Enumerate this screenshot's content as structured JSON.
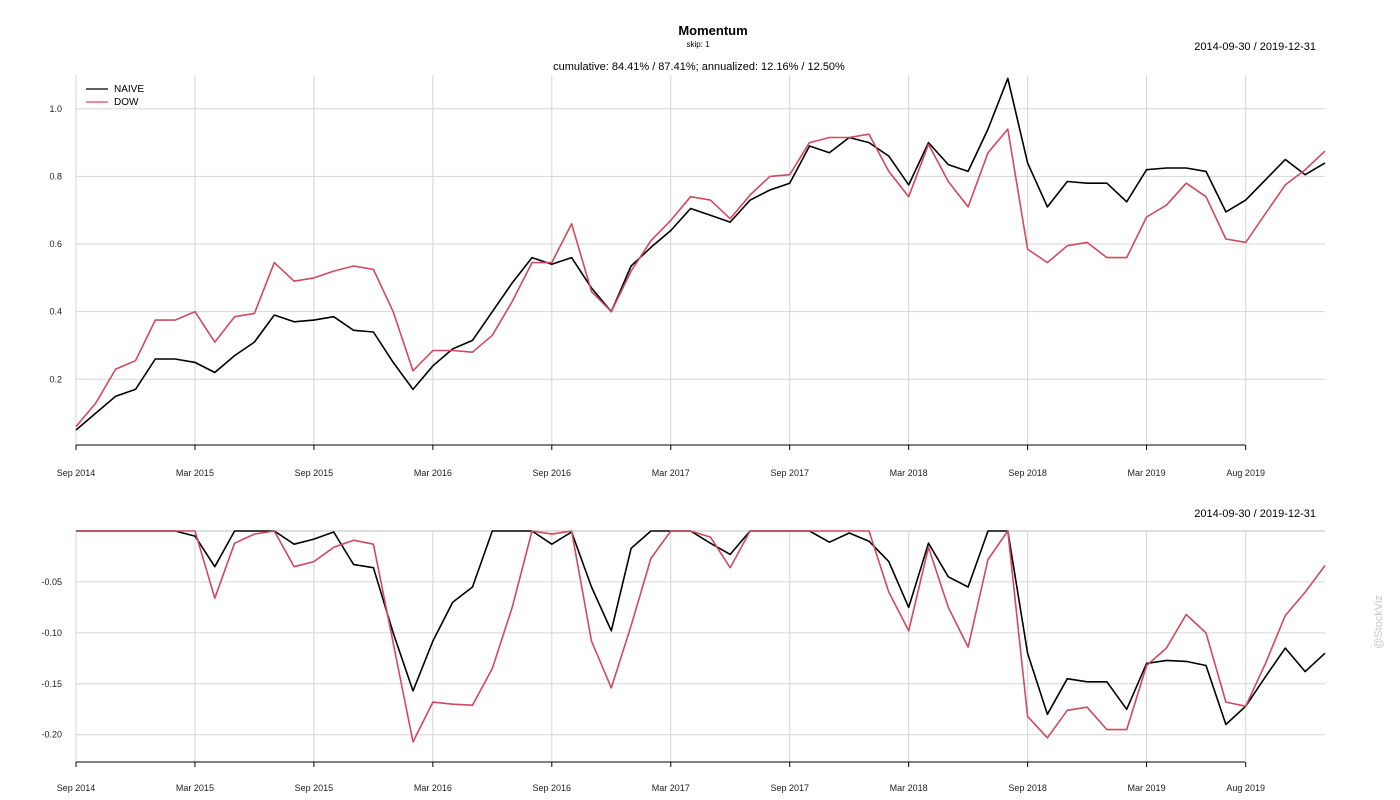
{
  "chart_data": [
    {
      "type": "line",
      "title": "Momentum",
      "subtitle": "skip: 1",
      "stats_label": "cumulative: 84.41% / 87.41%; annualized: 12.16% / 12.50%",
      "date_range_label": "2014-09-30 / 2019-12-31",
      "xlabel": "",
      "ylabel": "",
      "ylim": [
        0.05,
        1.1
      ],
      "yticks": [
        "0.2",
        "0.4",
        "0.6",
        "0.8",
        "1.0"
      ],
      "xticks": [
        "Sep 2014",
        "Mar 2015",
        "Sep 2015",
        "Mar 2016",
        "Sep 2016",
        "Mar 2017",
        "Sep 2017",
        "Mar 2018",
        "Sep 2018",
        "Mar 2019",
        "Aug 2019"
      ],
      "x_start": "2014-09",
      "x_end": "2019-12",
      "grid": true,
      "legend_position": "top-left",
      "series": [
        {
          "name": "NAIVE",
          "color": "#000000",
          "values": [
            0.05,
            0.1,
            0.15,
            0.17,
            0.26,
            0.26,
            0.25,
            0.22,
            0.27,
            0.31,
            0.39,
            0.37,
            0.375,
            0.385,
            0.345,
            0.34,
            0.25,
            0.17,
            0.24,
            0.29,
            0.315,
            0.4,
            0.485,
            0.56,
            0.54,
            0.56,
            0.47,
            0.4,
            0.535,
            0.59,
            0.64,
            0.705,
            0.685,
            0.665,
            0.73,
            0.76,
            0.78,
            0.89,
            0.87,
            0.915,
            0.9,
            0.86,
            0.775,
            0.9,
            0.835,
            0.815,
            0.94,
            1.09,
            0.84,
            0.71,
            0.785,
            0.78,
            0.78,
            0.725,
            0.82,
            0.825,
            0.825,
            0.815,
            0.695,
            0.73,
            0.79,
            0.85,
            0.805,
            0.84
          ]
        },
        {
          "name": "DOW",
          "color": "#d0495e",
          "values": [
            0.06,
            0.13,
            0.23,
            0.255,
            0.375,
            0.375,
            0.4,
            0.31,
            0.385,
            0.395,
            0.545,
            0.49,
            0.5,
            0.52,
            0.535,
            0.525,
            0.4,
            0.225,
            0.285,
            0.285,
            0.28,
            0.33,
            0.43,
            0.545,
            0.545,
            0.66,
            0.46,
            0.4,
            0.52,
            0.61,
            0.67,
            0.74,
            0.73,
            0.675,
            0.745,
            0.8,
            0.805,
            0.9,
            0.915,
            0.915,
            0.925,
            0.815,
            0.74,
            0.895,
            0.785,
            0.71,
            0.87,
            0.94,
            0.585,
            0.545,
            0.595,
            0.605,
            0.56,
            0.56,
            0.68,
            0.715,
            0.78,
            0.74,
            0.615,
            0.605,
            0.69,
            0.775,
            0.82,
            0.875
          ]
        }
      ]
    },
    {
      "type": "line",
      "title": "",
      "date_range_label": "2014-09-30 / 2019-12-31",
      "ylim": [
        -0.215,
        0.0
      ],
      "yticks": [
        "-0.05",
        "-0.10",
        "-0.15",
        "-0.20"
      ],
      "xticks": [
        "Sep 2014",
        "Mar 2015",
        "Sep 2015",
        "Mar 2016",
        "Sep 2016",
        "Mar 2017",
        "Sep 2017",
        "Mar 2018",
        "Sep 2018",
        "Mar 2019",
        "Aug 2019"
      ],
      "x_start": "2014-09",
      "x_end": "2019-12",
      "grid": true,
      "series": [
        {
          "name": "NAIVE",
          "color": "#000000",
          "values": [
            0,
            0,
            0,
            0,
            0,
            0,
            -0.005,
            -0.035,
            0,
            0,
            0,
            -0.013,
            -0.008,
            -0.001,
            -0.033,
            -0.036,
            -0.1,
            -0.157,
            -0.108,
            -0.07,
            -0.055,
            0,
            0,
            0,
            -0.013,
            -0.001,
            -0.055,
            -0.098,
            -0.017,
            0,
            0,
            0,
            -0.012,
            -0.023,
            0,
            0,
            0,
            0,
            -0.011,
            -0.002,
            -0.01,
            -0.03,
            -0.075,
            -0.012,
            -0.045,
            -0.055,
            0,
            0,
            -0.12,
            -0.18,
            -0.145,
            -0.148,
            -0.148,
            -0.175,
            -0.13,
            -0.127,
            -0.128,
            -0.132,
            -0.19,
            -0.172,
            -0.143,
            -0.115,
            -0.138,
            -0.12
          ]
        },
        {
          "name": "DOW",
          "color": "#d0495e",
          "values": [
            0,
            0,
            0,
            0,
            0,
            0,
            0,
            -0.066,
            -0.012,
            -0.003,
            0,
            -0.035,
            -0.03,
            -0.016,
            -0.009,
            -0.013,
            -0.11,
            -0.207,
            -0.168,
            -0.17,
            -0.171,
            -0.135,
            -0.075,
            0,
            -0.003,
            0,
            -0.108,
            -0.154,
            -0.093,
            -0.027,
            0,
            0,
            -0.006,
            -0.036,
            0,
            0,
            0,
            0,
            0,
            0,
            0,
            -0.06,
            -0.098,
            -0.016,
            -0.075,
            -0.114,
            -0.028,
            0,
            -0.182,
            -0.203,
            -0.176,
            -0.173,
            -0.195,
            -0.195,
            -0.132,
            -0.115,
            -0.082,
            -0.1,
            -0.168,
            -0.172,
            -0.13,
            -0.083,
            -0.06,
            -0.034
          ]
        }
      ]
    }
  ],
  "watermark": "@StockViz"
}
